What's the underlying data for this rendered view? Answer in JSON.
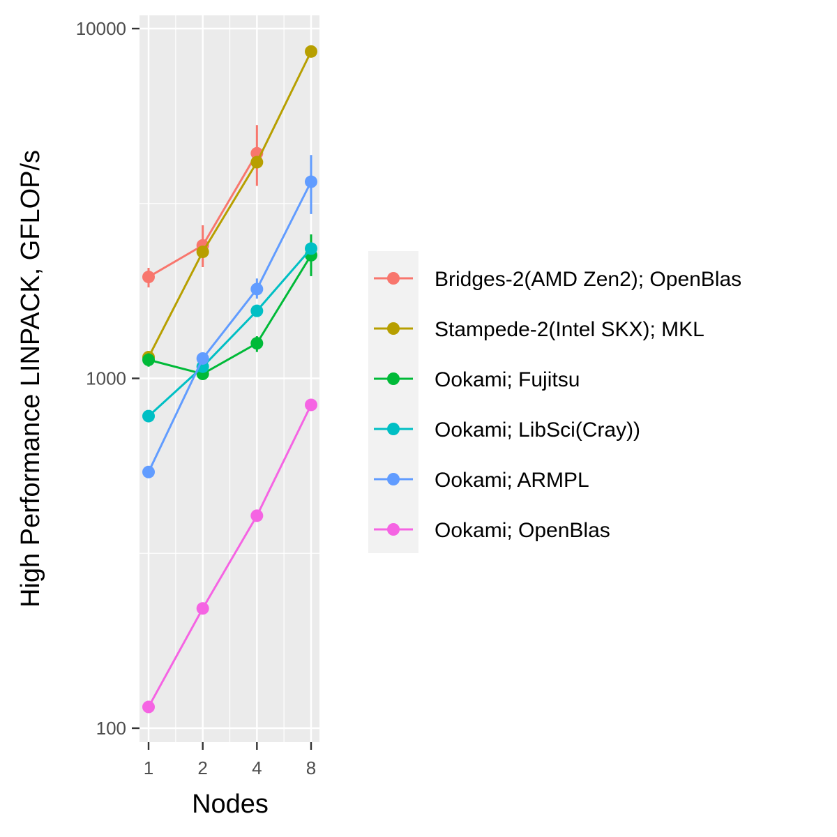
{
  "chart_data": {
    "type": "line",
    "xlabel": "Nodes",
    "ylabel": "High Performance LINPACK, GFLOP/s",
    "x_scale": "log2",
    "y_scale": "log10",
    "x": [
      1,
      2,
      4,
      8
    ],
    "x_tick_labels": [
      "1",
      "2",
      "4",
      "8"
    ],
    "y_ticks": [
      100,
      1000,
      10000
    ],
    "y_tick_labels": [
      "100",
      "1000",
      "10000"
    ],
    "ylim": [
      88,
      11000
    ],
    "grid": true,
    "legend_position": "right",
    "series": [
      {
        "name": "Bridges-2(AMD Zen2); OpenBlas",
        "color": "#F8766D",
        "values": [
          1950,
          2400,
          4400,
          null
        ],
        "err_low": [
          1820,
          2080,
          3550,
          null
        ],
        "err_high": [
          2070,
          2740,
          5300,
          null
        ]
      },
      {
        "name": "Stampede-2(Intel SKX); MKL",
        "color": "#B79F00",
        "values": [
          1150,
          2300,
          4150,
          8600
        ],
        "err_low": [
          null,
          null,
          null,
          null
        ],
        "err_high": [
          null,
          null,
          null,
          null
        ]
      },
      {
        "name": "Ookami; Fujitsu",
        "color": "#00BA38",
        "values": [
          1130,
          1030,
          1260,
          2250
        ],
        "err_low": [
          1080,
          null,
          1190,
          1960
        ],
        "err_high": [
          1180,
          null,
          1320,
          2580
        ]
      },
      {
        "name": "Ookami; LibSci(Cray))",
        "color": "#00BFC4",
        "values": [
          780,
          1080,
          1560,
          2350
        ],
        "err_low": [
          null,
          null,
          null,
          null
        ],
        "err_high": [
          null,
          null,
          null,
          null
        ]
      },
      {
        "name": "Ookami; ARMPL",
        "color": "#619CFF",
        "values": [
          540,
          1140,
          1800,
          3650
        ],
        "err_low": [
          null,
          null,
          1690,
          2950
        ],
        "err_high": [
          null,
          null,
          1930,
          4350
        ]
      },
      {
        "name": "Ookami; OpenBlas",
        "color": "#F564E3",
        "values": [
          115,
          220,
          405,
          840
        ],
        "err_low": [
          null,
          null,
          null,
          null
        ],
        "err_high": [
          null,
          null,
          null,
          null
        ]
      }
    ]
  }
}
